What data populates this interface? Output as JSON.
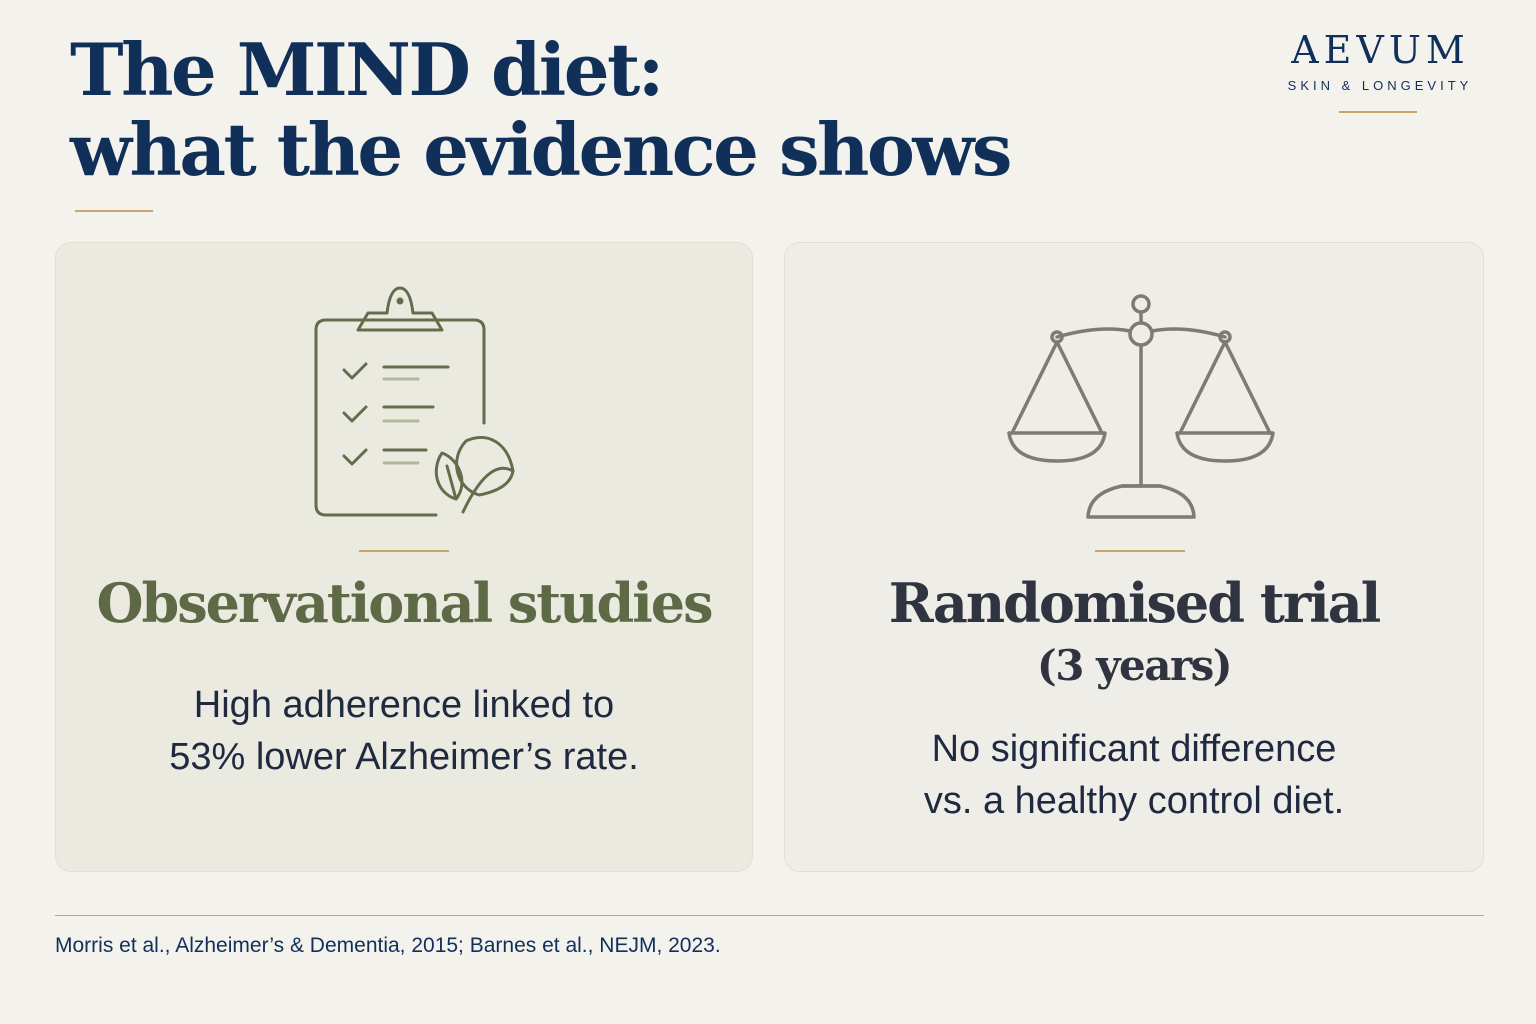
{
  "header": {
    "title_line1": "The MIND diet:",
    "title_line2": "what the evidence shows"
  },
  "brand": {
    "name": "AEVUM",
    "tagline": "SKIN & LONGEVITY"
  },
  "cards": [
    {
      "icon": "clipboard-leaf-icon",
      "heading": "Observational studies",
      "text_line1": "High adherence linked to",
      "text_line2": "53% lower Alzheimer’s rate."
    },
    {
      "icon": "balance-scale-icon",
      "heading": "Randomised trial",
      "subheading": "(3 years)",
      "text_line1": "No significant difference",
      "text_line2": "vs. a healthy control diet."
    }
  ],
  "footer": {
    "citation": "Morris et al., Alzheimer’s & Dementia, 2015; Barnes et al., NEJM, 2023."
  },
  "colors": {
    "navy": "#10305a",
    "olive": "#5e6a45",
    "gold": "#c6a46b",
    "background": "#f4f2ed"
  }
}
